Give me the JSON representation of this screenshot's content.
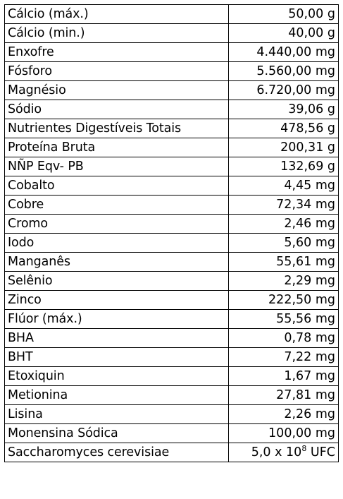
{
  "nutrients": [
    {
      "name": "Cálcio (máx.)",
      "value": "50,00 g"
    },
    {
      "name": "Cálcio (min.)",
      "value": "40,00 g"
    },
    {
      "name": "Enxofre",
      "value": "4.440,00 mg"
    },
    {
      "name": "Fósforo",
      "value": "5.560,00 mg"
    },
    {
      "name": "Magnésio",
      "value": "6.720,00 mg"
    },
    {
      "name": "Sódio",
      "value": "39,06 g"
    },
    {
      "name": "Nutrientes Digestíveis Totais",
      "value": "478,56 g"
    },
    {
      "name": "Proteína Bruta",
      "value": "200,31 g"
    },
    {
      "name": "NÑP Eqv- PB",
      "value": "132,69 g"
    },
    {
      "name": "Cobalto",
      "value": "4,45 mg"
    },
    {
      "name": "Cobre",
      "value": "72,34 mg"
    },
    {
      "name": "Cromo",
      "value": "2,46 mg"
    },
    {
      "name": "Iodo",
      "value": "5,60 mg"
    },
    {
      "name": "Manganês",
      "value": "55,61 mg"
    },
    {
      "name": "Selênio",
      "value": "2,29 mg"
    },
    {
      "name": "Zinco",
      "value": "222,50 mg"
    },
    {
      "name": "Flúor (máx.)",
      "value": "55,56 mg"
    },
    {
      "name": "BHA",
      "value": "0,78 mg"
    },
    {
      "name": "BHT",
      "value": "7,22 mg"
    },
    {
      "name": "Etoxiquin",
      "value": "1,67 mg"
    },
    {
      "name": "Metionina",
      "value": "27,81 mg"
    },
    {
      "name": "Lisina",
      "value": "2,26 mg"
    },
    {
      "name": "Monensina Sódica",
      "value": "100,00 mg"
    }
  ],
  "last_row": {
    "name": "Saccharomyces cerevisiae",
    "value_base": "5,0 x 10",
    "value_exponent": "8",
    "value_unit": " UFC"
  }
}
